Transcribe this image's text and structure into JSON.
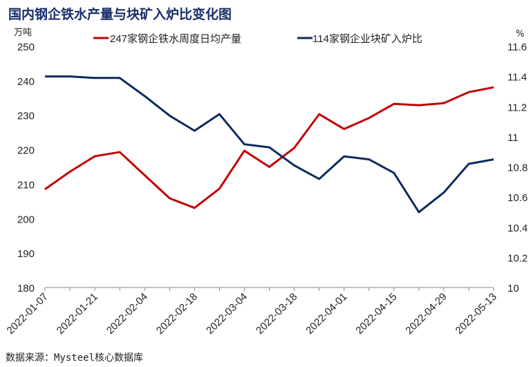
{
  "title": "国内钢企铁水产量与块矿入炉比变化图",
  "source": "数据来源：Mysteel核心数据库",
  "chart_data": {
    "type": "line",
    "title": "国内钢企铁水产量与块矿入炉比变化图",
    "x": [
      "2022-01-07",
      "2022-01-14",
      "2022-01-21",
      "2022-01-28",
      "2022-02-04",
      "2022-02-11",
      "2022-02-18",
      "2022-02-25",
      "2022-03-04",
      "2022-03-11",
      "2022-03-18",
      "2022-03-25",
      "2022-04-01",
      "2022-04-08",
      "2022-04-15",
      "2022-04-22",
      "2022-04-29",
      "2022-05-06",
      "2022-05-13"
    ],
    "x_tick_labels": [
      "2022-01-07",
      "2022-01-21",
      "2022-02-04",
      "2022-02-18",
      "2022-03-04",
      "2022-03-18",
      "2022-04-01",
      "2022-04-15",
      "2022-04-29",
      "2022-05-13"
    ],
    "ylabel": "万吨",
    "ylabel_right": "%",
    "ylim": [
      180,
      250
    ],
    "ylim_right": [
      10,
      11.6
    ],
    "y_ticks": [
      "180",
      "190",
      "200",
      "210",
      "220",
      "230",
      "240",
      "250"
    ],
    "y_ticks_right": [
      "10",
      "10.2",
      "10.4",
      "10.6",
      "10.8",
      "11",
      "11.2",
      "11.4",
      "11.6"
    ],
    "legend_position": "top",
    "grid": false,
    "series": [
      {
        "name": "247家钢企铁水周度日均产量",
        "axis": "left",
        "color": "#c00000",
        "values": [
          208.5,
          213.6,
          218.1,
          219.3,
          212.6,
          205.9,
          203.1,
          208.7,
          219.7,
          215.0,
          220.5,
          230.3,
          226.0,
          229.2,
          233.3,
          232.9,
          233.5,
          236.7,
          238.1
        ]
      },
      {
        "name": "114家钢企业块矿入炉比",
        "axis": "right",
        "color": "#0d2a5e",
        "values": [
          11.4,
          11.4,
          11.39,
          11.39,
          11.27,
          11.14,
          11.04,
          11.15,
          10.95,
          10.93,
          10.81,
          10.72,
          10.87,
          10.85,
          10.76,
          10.5,
          10.63,
          10.82,
          10.85
        ]
      }
    ]
  }
}
